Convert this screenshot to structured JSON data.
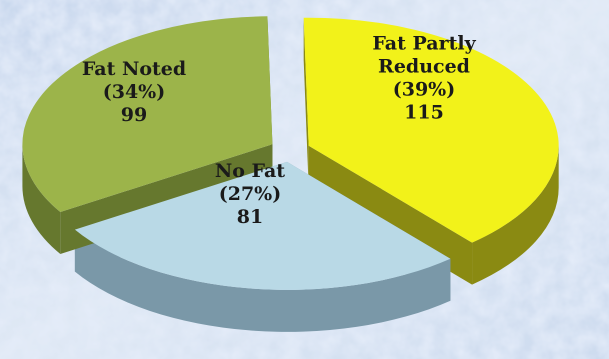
{
  "chart_data": {
    "type": "pie",
    "style": "3d-exploded",
    "legend": "none",
    "slices": [
      {
        "name": "Fat Partly Reduced",
        "percent_label": "(39%)",
        "value": 115,
        "color": "#f2f21a",
        "side_color": "#8a8a12"
      },
      {
        "name": "No Fat",
        "percent_label": "(27%)",
        "value": 81,
        "color": "#b9d9e6",
        "side_color": "#7a98a8"
      },
      {
        "name": "Fat Noted",
        "percent_label": "(34%)",
        "value": 99,
        "color": "#9cb44a",
        "side_color": "#66782e"
      }
    ]
  },
  "colors": {
    "background": "#d8e4f0"
  }
}
